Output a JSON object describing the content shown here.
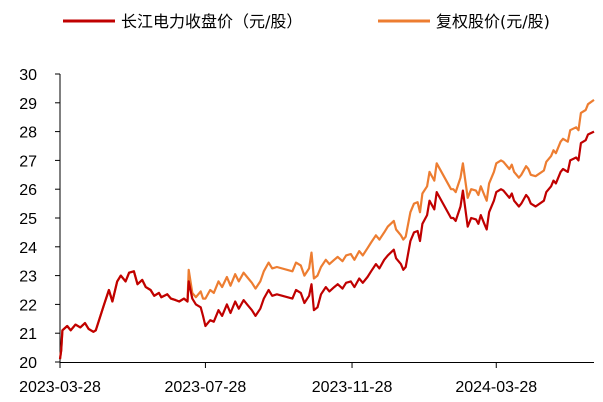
{
  "chart_data": {
    "type": "line",
    "title": "",
    "xlabel": "",
    "ylabel": "",
    "ylim": [
      20,
      30
    ],
    "xlim": [
      "2023-03-28",
      "2024-06-18"
    ],
    "grid": false,
    "legend_position": "top",
    "yticks": [
      "20",
      "21",
      "22",
      "23",
      "24",
      "25",
      "26",
      "27",
      "28",
      "29",
      "30"
    ],
    "xticks": [
      {
        "date": "2023-03-28",
        "label": "2023-03-28"
      },
      {
        "date": "2023-07-28",
        "label": "2023-07-28"
      },
      {
        "date": "2023-11-28",
        "label": "2023-11-28"
      },
      {
        "date": "2024-03-28",
        "label": "2024-03-28"
      }
    ],
    "series": [
      {
        "name": "长江电力收盘价（元/股）",
        "color": "#c00000",
        "points": [
          [
            "2023-03-28",
            20.1
          ],
          [
            "2023-03-29",
            20.4
          ],
          [
            "2023-03-30",
            21.1
          ],
          [
            "2023-04-03",
            21.25
          ],
          [
            "2023-04-06",
            21.1
          ],
          [
            "2023-04-10",
            21.3
          ],
          [
            "2023-04-14",
            21.2
          ],
          [
            "2023-04-18",
            21.35
          ],
          [
            "2023-04-21",
            21.15
          ],
          [
            "2023-04-25",
            21.05
          ],
          [
            "2023-04-27",
            21.1
          ],
          [
            "2023-05-04",
            22.0
          ],
          [
            "2023-05-08",
            22.5
          ],
          [
            "2023-05-11",
            22.1
          ],
          [
            "2023-05-15",
            22.8
          ],
          [
            "2023-05-18",
            23.0
          ],
          [
            "2023-05-22",
            22.8
          ],
          [
            "2023-05-25",
            23.1
          ],
          [
            "2023-05-29",
            23.15
          ],
          [
            "2023-06-01",
            22.7
          ],
          [
            "2023-06-05",
            22.85
          ],
          [
            "2023-06-08",
            22.6
          ],
          [
            "2023-06-12",
            22.5
          ],
          [
            "2023-06-15",
            22.3
          ],
          [
            "2023-06-19",
            22.4
          ],
          [
            "2023-06-21",
            22.25
          ],
          [
            "2023-06-26",
            22.35
          ],
          [
            "2023-06-29",
            22.2
          ],
          [
            "2023-07-03",
            22.15
          ],
          [
            "2023-07-06",
            22.1
          ],
          [
            "2023-07-10",
            22.2
          ],
          [
            "2023-07-13",
            22.1
          ],
          [
            "2023-07-14",
            22.8
          ],
          [
            "2023-07-17",
            22.2
          ],
          [
            "2023-07-20",
            22.0
          ],
          [
            "2023-07-24",
            21.9
          ],
          [
            "2023-07-26",
            21.6
          ],
          [
            "2023-07-28",
            21.25
          ],
          [
            "2023-08-01",
            21.45
          ],
          [
            "2023-08-04",
            21.4
          ],
          [
            "2023-08-08",
            21.8
          ],
          [
            "2023-08-11",
            21.6
          ],
          [
            "2023-08-15",
            22.0
          ],
          [
            "2023-08-18",
            21.7
          ],
          [
            "2023-08-22",
            22.1
          ],
          [
            "2023-08-25",
            21.85
          ],
          [
            "2023-08-29",
            22.15
          ],
          [
            "2023-09-01",
            22.0
          ],
          [
            "2023-09-05",
            21.8
          ],
          [
            "2023-09-08",
            21.6
          ],
          [
            "2023-09-12",
            21.85
          ],
          [
            "2023-09-15",
            22.2
          ],
          [
            "2023-09-19",
            22.5
          ],
          [
            "2023-09-22",
            22.3
          ],
          [
            "2023-09-26",
            22.35
          ],
          [
            "2023-10-09",
            22.2
          ],
          [
            "2023-10-12",
            22.5
          ],
          [
            "2023-10-16",
            22.4
          ],
          [
            "2023-10-19",
            22.05
          ],
          [
            "2023-10-23",
            22.3
          ],
          [
            "2023-10-25",
            22.7
          ],
          [
            "2023-10-27",
            21.8
          ],
          [
            "2023-10-30",
            21.9
          ],
          [
            "2023-11-02",
            22.35
          ],
          [
            "2023-11-06",
            22.6
          ],
          [
            "2023-11-09",
            22.45
          ],
          [
            "2023-11-13",
            22.6
          ],
          [
            "2023-11-16",
            22.7
          ],
          [
            "2023-11-20",
            22.55
          ],
          [
            "2023-11-23",
            22.75
          ],
          [
            "2023-11-27",
            22.8
          ],
          [
            "2023-11-30",
            22.6
          ],
          [
            "2023-12-04",
            22.9
          ],
          [
            "2023-12-07",
            22.75
          ],
          [
            "2023-12-11",
            22.95
          ],
          [
            "2023-12-14",
            23.15
          ],
          [
            "2023-12-18",
            23.4
          ],
          [
            "2023-12-21",
            23.25
          ],
          [
            "2023-12-25",
            23.55
          ],
          [
            "2023-12-28",
            23.7
          ],
          [
            "2024-01-02",
            23.9
          ],
          [
            "2024-01-04",
            23.6
          ],
          [
            "2024-01-08",
            23.4
          ],
          [
            "2024-01-10",
            23.2
          ],
          [
            "2024-01-12",
            23.3
          ],
          [
            "2024-01-16",
            24.2
          ],
          [
            "2024-01-19",
            24.5
          ],
          [
            "2024-01-22",
            24.55
          ],
          [
            "2024-01-24",
            24.2
          ],
          [
            "2024-01-26",
            24.8
          ],
          [
            "2024-01-30",
            25.1
          ],
          [
            "2024-02-01",
            25.6
          ],
          [
            "2024-02-05",
            25.3
          ],
          [
            "2024-02-07",
            25.9
          ],
          [
            "2024-02-19",
            25.0
          ],
          [
            "2024-02-21",
            25.0
          ],
          [
            "2024-02-23",
            24.9
          ],
          [
            "2024-02-27",
            25.4
          ],
          [
            "2024-02-29",
            25.95
          ],
          [
            "2024-03-04",
            24.7
          ],
          [
            "2024-03-07",
            25.0
          ],
          [
            "2024-03-11",
            24.95
          ],
          [
            "2024-03-13",
            24.8
          ],
          [
            "2024-03-15",
            25.1
          ],
          [
            "2024-03-18",
            24.8
          ],
          [
            "2024-03-20",
            24.6
          ],
          [
            "2024-03-22",
            25.2
          ],
          [
            "2024-03-26",
            25.6
          ],
          [
            "2024-03-28",
            25.9
          ],
          [
            "2024-04-01",
            26.0
          ],
          [
            "2024-04-03",
            25.95
          ],
          [
            "2024-04-08",
            25.7
          ],
          [
            "2024-04-10",
            25.85
          ],
          [
            "2024-04-12",
            25.6
          ],
          [
            "2024-04-16",
            25.4
          ],
          [
            "2024-04-18",
            25.5
          ],
          [
            "2024-04-22",
            25.8
          ],
          [
            "2024-04-24",
            25.7
          ],
          [
            "2024-04-26",
            25.5
          ],
          [
            "2024-04-30",
            25.4
          ],
          [
            "2024-05-07",
            25.6
          ],
          [
            "2024-05-09",
            25.9
          ],
          [
            "2024-05-13",
            26.1
          ],
          [
            "2024-05-15",
            26.3
          ],
          [
            "2024-05-17",
            26.2
          ],
          [
            "2024-05-21",
            26.6
          ],
          [
            "2024-05-23",
            26.7
          ],
          [
            "2024-05-27",
            26.6
          ],
          [
            "2024-05-29",
            27.0
          ],
          [
            "2024-06-03",
            27.1
          ],
          [
            "2024-06-05",
            27.0
          ],
          [
            "2024-06-07",
            27.6
          ],
          [
            "2024-06-11",
            27.7
          ],
          [
            "2024-06-13",
            27.9
          ],
          [
            "2024-06-18",
            28.0
          ]
        ]
      },
      {
        "name": "复权股价(元/股)",
        "color": "#ed7d31",
        "points": [
          [
            "2023-03-28",
            20.1
          ],
          [
            "2023-03-29",
            20.4
          ],
          [
            "2023-03-30",
            21.1
          ],
          [
            "2023-04-03",
            21.25
          ],
          [
            "2023-04-06",
            21.1
          ],
          [
            "2023-04-10",
            21.3
          ],
          [
            "2023-04-14",
            21.2
          ],
          [
            "2023-04-18",
            21.35
          ],
          [
            "2023-04-21",
            21.15
          ],
          [
            "2023-04-25",
            21.05
          ],
          [
            "2023-04-27",
            21.1
          ],
          [
            "2023-05-04",
            22.0
          ],
          [
            "2023-05-08",
            22.5
          ],
          [
            "2023-05-11",
            22.1
          ],
          [
            "2023-05-15",
            22.8
          ],
          [
            "2023-05-18",
            23.0
          ],
          [
            "2023-05-22",
            22.8
          ],
          [
            "2023-05-25",
            23.1
          ],
          [
            "2023-05-29",
            23.15
          ],
          [
            "2023-06-01",
            22.7
          ],
          [
            "2023-06-05",
            22.85
          ],
          [
            "2023-06-08",
            22.6
          ],
          [
            "2023-06-12",
            22.5
          ],
          [
            "2023-06-15",
            22.3
          ],
          [
            "2023-06-19",
            22.4
          ],
          [
            "2023-06-21",
            22.25
          ],
          [
            "2023-06-26",
            22.35
          ],
          [
            "2023-06-29",
            22.2
          ],
          [
            "2023-07-03",
            22.15
          ],
          [
            "2023-07-06",
            22.1
          ],
          [
            "2023-07-10",
            22.2
          ],
          [
            "2023-07-13",
            22.1
          ],
          [
            "2023-07-14",
            23.2
          ],
          [
            "2023-07-17",
            22.4
          ],
          [
            "2023-07-20",
            22.25
          ],
          [
            "2023-07-24",
            22.45
          ],
          [
            "2023-07-26",
            22.2
          ],
          [
            "2023-07-28",
            22.2
          ],
          [
            "2023-08-01",
            22.5
          ],
          [
            "2023-08-04",
            22.4
          ],
          [
            "2023-08-08",
            22.8
          ],
          [
            "2023-08-11",
            22.6
          ],
          [
            "2023-08-15",
            22.95
          ],
          [
            "2023-08-18",
            22.65
          ],
          [
            "2023-08-22",
            23.05
          ],
          [
            "2023-08-25",
            22.8
          ],
          [
            "2023-08-29",
            23.1
          ],
          [
            "2023-09-01",
            22.95
          ],
          [
            "2023-09-05",
            22.75
          ],
          [
            "2023-09-08",
            22.55
          ],
          [
            "2023-09-12",
            22.8
          ],
          [
            "2023-09-15",
            23.15
          ],
          [
            "2023-09-19",
            23.45
          ],
          [
            "2023-09-22",
            23.25
          ],
          [
            "2023-09-26",
            23.3
          ],
          [
            "2023-10-09",
            23.15
          ],
          [
            "2023-10-12",
            23.45
          ],
          [
            "2023-10-16",
            23.35
          ],
          [
            "2023-10-19",
            23.0
          ],
          [
            "2023-10-23",
            23.25
          ],
          [
            "2023-10-25",
            23.8
          ],
          [
            "2023-10-27",
            22.9
          ],
          [
            "2023-10-30",
            23.0
          ],
          [
            "2023-11-02",
            23.3
          ],
          [
            "2023-11-06",
            23.55
          ],
          [
            "2023-11-09",
            23.4
          ],
          [
            "2023-11-13",
            23.55
          ],
          [
            "2023-11-16",
            23.65
          ],
          [
            "2023-11-20",
            23.5
          ],
          [
            "2023-11-23",
            23.7
          ],
          [
            "2023-11-27",
            23.75
          ],
          [
            "2023-11-30",
            23.55
          ],
          [
            "2023-12-04",
            23.85
          ],
          [
            "2023-12-07",
            23.7
          ],
          [
            "2023-12-11",
            23.95
          ],
          [
            "2023-12-14",
            24.15
          ],
          [
            "2023-12-18",
            24.4
          ],
          [
            "2023-12-21",
            24.25
          ],
          [
            "2023-12-25",
            24.5
          ],
          [
            "2023-12-28",
            24.7
          ],
          [
            "2024-01-02",
            24.9
          ],
          [
            "2024-01-04",
            24.6
          ],
          [
            "2024-01-08",
            24.4
          ],
          [
            "2024-01-10",
            24.25
          ],
          [
            "2024-01-12",
            24.35
          ],
          [
            "2024-01-16",
            25.2
          ],
          [
            "2024-01-19",
            25.5
          ],
          [
            "2024-01-22",
            25.55
          ],
          [
            "2024-01-24",
            25.2
          ],
          [
            "2024-01-26",
            25.85
          ],
          [
            "2024-01-30",
            26.1
          ],
          [
            "2024-02-01",
            26.6
          ],
          [
            "2024-02-05",
            26.3
          ],
          [
            "2024-02-07",
            26.9
          ],
          [
            "2024-02-19",
            26.0
          ],
          [
            "2024-02-21",
            26.0
          ],
          [
            "2024-02-23",
            25.9
          ],
          [
            "2024-02-27",
            26.4
          ],
          [
            "2024-02-29",
            26.9
          ],
          [
            "2024-03-04",
            25.7
          ],
          [
            "2024-03-07",
            26.0
          ],
          [
            "2024-03-11",
            25.95
          ],
          [
            "2024-03-13",
            25.8
          ],
          [
            "2024-03-15",
            26.1
          ],
          [
            "2024-03-18",
            25.8
          ],
          [
            "2024-03-20",
            25.6
          ],
          [
            "2024-03-22",
            26.2
          ],
          [
            "2024-03-26",
            26.6
          ],
          [
            "2024-03-28",
            26.9
          ],
          [
            "2024-04-01",
            27.0
          ],
          [
            "2024-04-03",
            26.95
          ],
          [
            "2024-04-08",
            26.7
          ],
          [
            "2024-04-10",
            26.85
          ],
          [
            "2024-04-12",
            26.6
          ],
          [
            "2024-04-16",
            26.4
          ],
          [
            "2024-04-18",
            26.5
          ],
          [
            "2024-04-22",
            26.8
          ],
          [
            "2024-04-24",
            26.7
          ],
          [
            "2024-04-26",
            26.5
          ],
          [
            "2024-04-30",
            26.45
          ],
          [
            "2024-05-07",
            26.65
          ],
          [
            "2024-05-09",
            26.95
          ],
          [
            "2024-05-13",
            27.15
          ],
          [
            "2024-05-15",
            27.35
          ],
          [
            "2024-05-17",
            27.25
          ],
          [
            "2024-05-21",
            27.65
          ],
          [
            "2024-05-23",
            27.75
          ],
          [
            "2024-05-27",
            27.65
          ],
          [
            "2024-05-29",
            28.05
          ],
          [
            "2024-06-03",
            28.15
          ],
          [
            "2024-06-05",
            28.05
          ],
          [
            "2024-06-07",
            28.65
          ],
          [
            "2024-06-11",
            28.75
          ],
          [
            "2024-06-13",
            28.95
          ],
          [
            "2024-06-18",
            29.1
          ]
        ]
      }
    ]
  }
}
